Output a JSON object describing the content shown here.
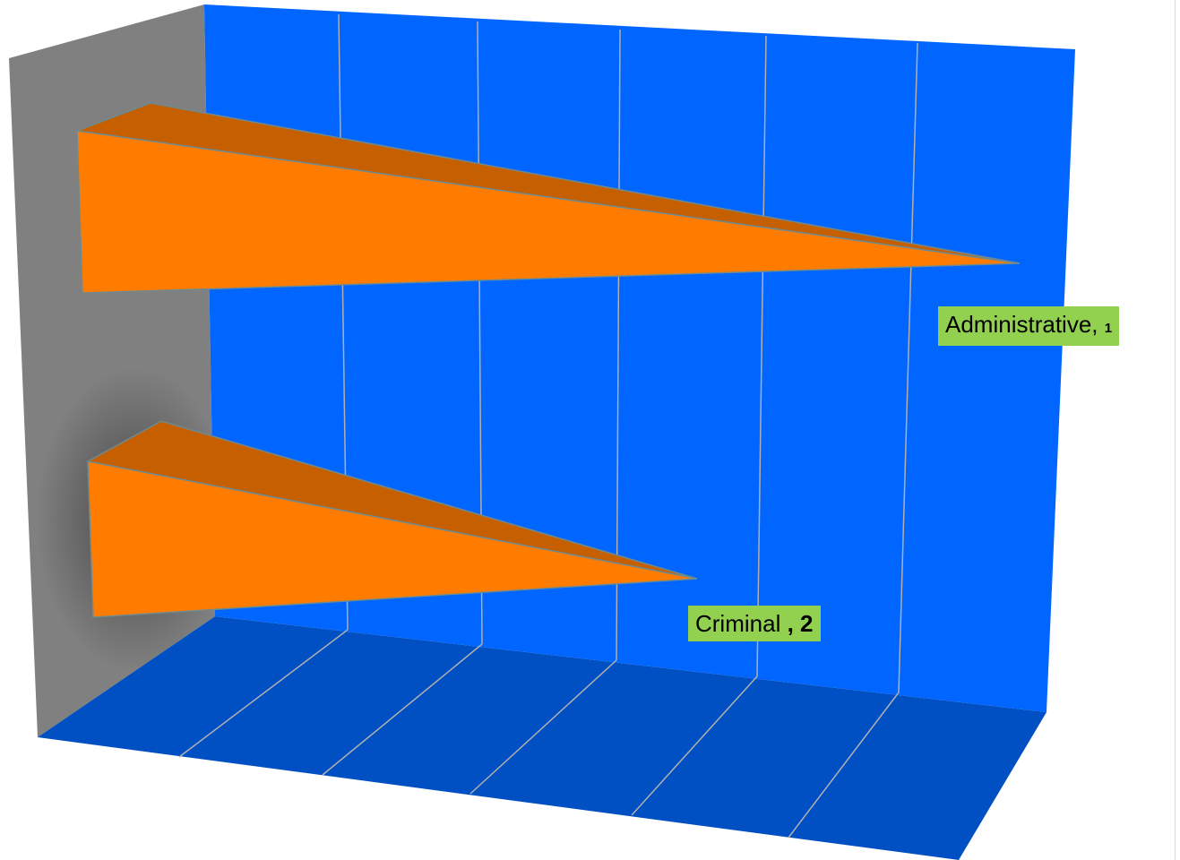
{
  "chart_data": {
    "type": "bar",
    "orientation": "horizontal",
    "style": "3d-cone",
    "categories": [
      "Administrative",
      "Criminal"
    ],
    "values": [
      1,
      2
    ],
    "data_labels": [
      {
        "category": "Administrative",
        "separator": ",",
        "value": "1"
      },
      {
        "category": "Criminal ",
        "separator": ",",
        "value": "2"
      }
    ],
    "title": "",
    "xlabel": "",
    "ylabel": "",
    "grid": true,
    "legend": "none"
  },
  "colors": {
    "back_wall": "#0066ff",
    "floor": "#0050c4",
    "side_wall": "#808080",
    "bar_front": "#ff7c00",
    "bar_top": "#c65f00",
    "gridline": "#b0b0b0",
    "label_bg": "#92d050"
  }
}
